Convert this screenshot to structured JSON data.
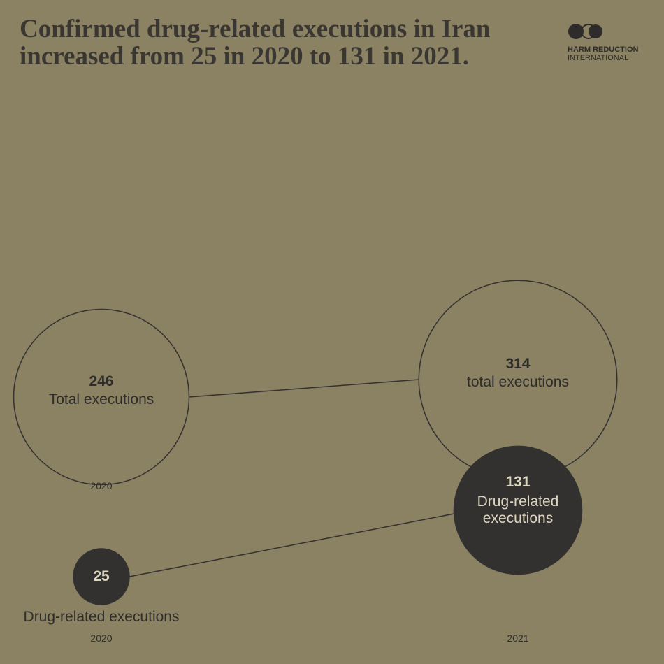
{
  "title": "Confirmed drug-related executions in Iran increased from 25 in 2020 to 131 in 2021.",
  "logo": [
    "HARM REDUCTION",
    "INTERNATIONAL"
  ],
  "chart_data": {
    "type": "bubble",
    "categories": [
      "2020",
      "2021"
    ],
    "series": [
      {
        "labels": [
          "Total executions",
          "total executions"
        ],
        "values": [
          246,
          314
        ],
        "color": "none"
      },
      {
        "labels": [
          "Drug-related executions",
          "Drug-related executions"
        ],
        "values": [
          25,
          131
        ],
        "color": "#333130"
      }
    ]
  }
}
